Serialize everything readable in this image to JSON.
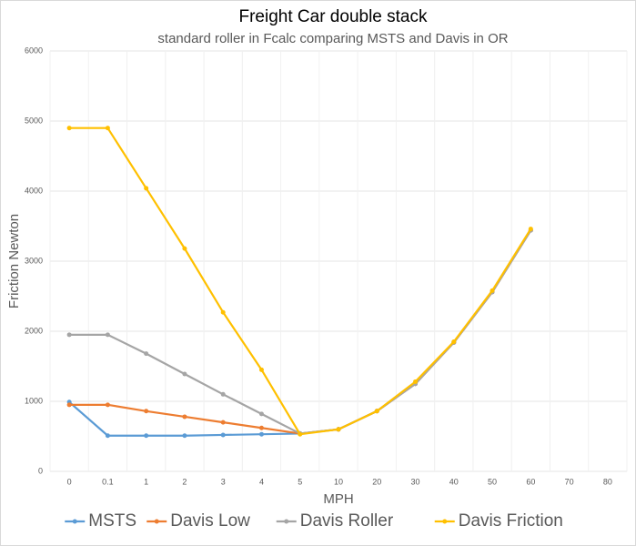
{
  "chart_data": {
    "type": "line",
    "title": "Freight Car double stack",
    "subtitle": "standard roller in Fcalc comparing MSTS and Davis in OR",
    "xlabel": "MPH",
    "ylabel": "Friction Newton",
    "categories": [
      "0",
      "0.1",
      "1",
      "2",
      "3",
      "4",
      "5",
      "10",
      "20",
      "30",
      "40",
      "50",
      "60",
      "70",
      "80"
    ],
    "series": [
      {
        "name": "MSTS",
        "color": "#5b9bd5",
        "values": [
          990,
          510,
          510,
          510,
          520,
          530,
          540,
          600,
          860,
          1250,
          1840,
          2560,
          3440,
          null,
          null
        ]
      },
      {
        "name": "Davis Low",
        "color": "#ed7d31",
        "values": [
          950,
          950,
          860,
          780,
          700,
          620,
          540,
          600,
          860,
          1250,
          1840,
          2560,
          3440,
          null,
          null
        ]
      },
      {
        "name": "Davis Roller",
        "color": "#a5a5a5",
        "values": [
          1950,
          1950,
          1680,
          1390,
          1100,
          820,
          540,
          600,
          860,
          1250,
          1840,
          2560,
          3440,
          null,
          null
        ]
      },
      {
        "name": "Davis Friction",
        "color": "#ffc000",
        "values": [
          4900,
          4900,
          4040,
          3180,
          2270,
          1450,
          530,
          600,
          860,
          1280,
          1850,
          2580,
          3460,
          null,
          null
        ]
      }
    ],
    "ylim": [
      0,
      6000
    ],
    "yticks": [
      0,
      1000,
      2000,
      3000,
      4000,
      5000,
      6000
    ],
    "grid": true,
    "legend": "bottom"
  }
}
